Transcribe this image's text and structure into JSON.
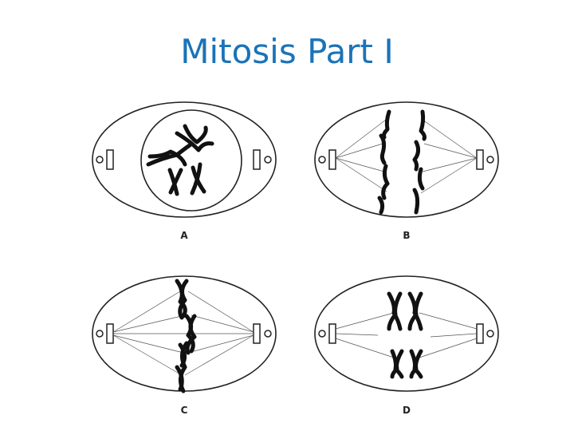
{
  "title": "Mitosis Part I",
  "panels": [
    {
      "id": "a",
      "label": "A"
    },
    {
      "id": "b",
      "label": "B"
    },
    {
      "id": "c",
      "label": "C"
    },
    {
      "id": "d",
      "label": "D"
    }
  ]
}
